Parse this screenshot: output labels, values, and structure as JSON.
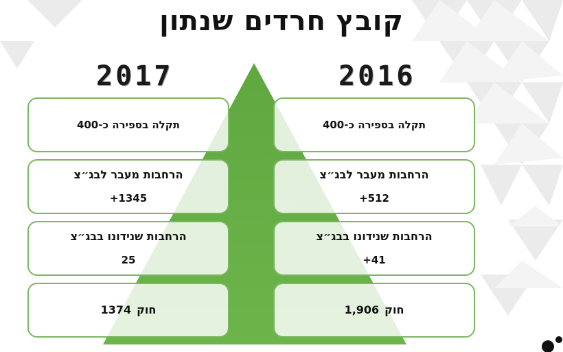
{
  "title": "קובץ חרדים שנתון",
  "years": {
    "left": "2017",
    "right": "2016"
  },
  "columns": {
    "left": [
      {
        "line": "תקלה בספירה כ-400",
        "value": ""
      },
      {
        "line": "הרחבות מעבר לבג״צ",
        "value": "+1345"
      },
      {
        "line": "הרחבות שנידונו בבג״צ",
        "value": "25"
      },
      {
        "line": "חוק",
        "value": "1374"
      }
    ],
    "right": [
      {
        "line": "תקלה בספירה כ-400",
        "value": ""
      },
      {
        "line": "הרחבות מעבר לבג״צ",
        "value": "+512"
      },
      {
        "line": "הרחבות שנידונו בבג״צ",
        "value": "+41"
      },
      {
        "line": "חוק",
        "value": "1,906"
      }
    ]
  },
  "colors": {
    "pyramid": "#6ab04c",
    "box_border": "#7bb661",
    "pattern": "#e6e6e6"
  }
}
